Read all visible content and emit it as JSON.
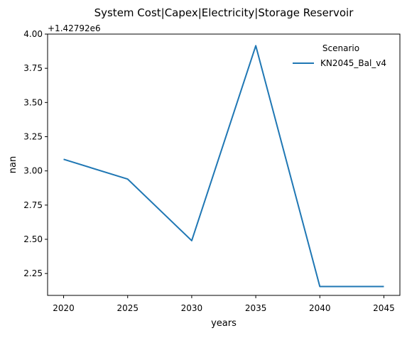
{
  "chart_data": {
    "type": "line",
    "title": "System Cost|Capex|Electricity|Storage Reservoir",
    "xlabel": "years",
    "ylabel": "nan",
    "offset_text": "+1.42792e6",
    "x": [
      2020,
      2025,
      2030,
      2035,
      2040,
      2045
    ],
    "x_ticks": [
      "2020",
      "2025",
      "2030",
      "2035",
      "2040",
      "2045"
    ],
    "y_ticks": [
      "2.25",
      "2.50",
      "2.75",
      "3.00",
      "3.25",
      "3.50",
      "3.75",
      "4.00"
    ],
    "xlim": [
      2018.75,
      2046.25
    ],
    "ylim": [
      2.09,
      4.0
    ],
    "grid": false,
    "legend": {
      "title": "Scenario",
      "placement": "top-right"
    },
    "series": [
      {
        "name": "KN2045_Bal_v4",
        "color": "#1f77b4",
        "values": [
          3.085,
          2.94,
          2.49,
          3.915,
          2.155,
          2.155
        ]
      }
    ]
  }
}
